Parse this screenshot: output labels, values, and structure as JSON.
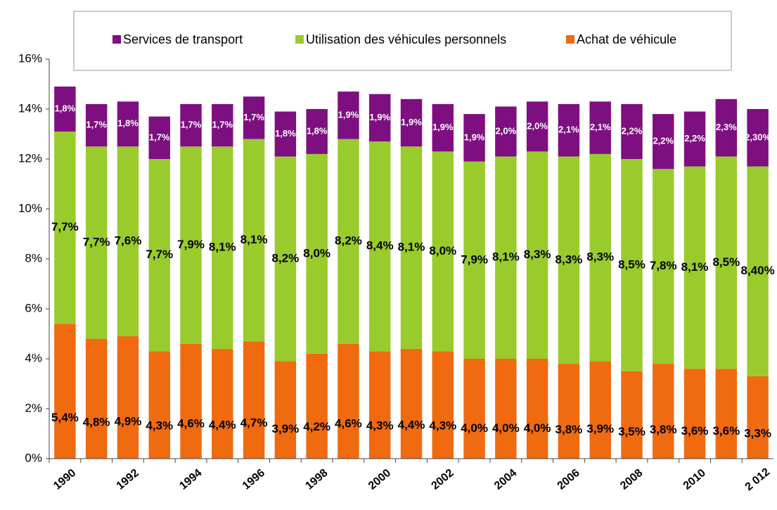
{
  "chart_data": {
    "type": "bar",
    "stacked": true,
    "categories": [
      "1990",
      null,
      "1992",
      null,
      "1994",
      null,
      "1996",
      null,
      "1998",
      null,
      "2000",
      null,
      "2002",
      null,
      "2004",
      null,
      "2006",
      null,
      "2008",
      null,
      "2010",
      null,
      "2 012"
    ],
    "series": [
      {
        "name": "Services de transport",
        "color": "#7e0f80",
        "values": [
          1.8,
          1.7,
          1.8,
          1.7,
          1.7,
          1.7,
          1.7,
          1.8,
          1.8,
          1.9,
          1.9,
          1.9,
          1.9,
          1.9,
          2.0,
          2.0,
          2.1,
          2.1,
          2.2,
          2.2,
          2.2,
          2.3,
          2.3
        ],
        "value_labels": [
          "1,8%",
          "1,7%",
          "1,8%",
          "1,7%",
          "1,7%",
          "1,7%",
          "1,7%",
          "1,8%",
          "1,8%",
          "1,9%",
          "1,9%",
          "1,9%",
          "1,9%",
          "1,9%",
          "2,0%",
          "2,0%",
          "2,1%",
          "2,1%",
          "2,2%",
          "2,2%",
          "2,2%",
          "2,3%",
          "2,30%"
        ]
      },
      {
        "name": "Utilisation des véhicules personnels",
        "color": "#9acb2c",
        "values": [
          7.7,
          7.7,
          7.6,
          7.7,
          7.9,
          8.1,
          8.1,
          8.2,
          8.0,
          8.2,
          8.4,
          8.1,
          8.0,
          7.9,
          8.1,
          8.3,
          8.3,
          8.3,
          8.5,
          7.8,
          8.1,
          8.5,
          8.4
        ],
        "value_labels": [
          "7,7%",
          "7,7%",
          "7,6%",
          "7,7%",
          "7,9%",
          "8,1%",
          "8,1%",
          "8,2%",
          "8,0%",
          "8,2%",
          "8,4%",
          "8,1%",
          "8,0%",
          "7,9%",
          "8,1%",
          "8,3%",
          "8,3%",
          "8,3%",
          "8,5%",
          "7,8%",
          "8,1%",
          "8,5%",
          "8,40%"
        ]
      },
      {
        "name": "Achat de véhicule",
        "color": "#f06a10",
        "values": [
          5.4,
          4.8,
          4.9,
          4.3,
          4.6,
          4.4,
          4.7,
          3.9,
          4.2,
          4.6,
          4.3,
          4.4,
          4.3,
          4.0,
          4.0,
          4.0,
          3.8,
          3.9,
          3.5,
          3.8,
          3.6,
          3.6,
          3.3
        ],
        "value_labels": [
          "5,4%",
          "4,8%",
          "4,9%",
          "4,3%",
          "4,6%",
          "4,4%",
          "4,7%",
          "3,9%",
          "4,2%",
          "4,6%",
          "4,3%",
          "4,4%",
          "4,3%",
          "4,0%",
          "4,0%",
          "4,0%",
          "3,8%",
          "3,9%",
          "3,5%",
          "3,8%",
          "3,6%",
          "3,6%",
          "3,3%"
        ]
      }
    ],
    "ylim": [
      0,
      16
    ],
    "yticks": [
      {
        "value": 0,
        "label": "0%"
      },
      {
        "value": 2,
        "label": "2%"
      },
      {
        "value": 4,
        "label": "4%"
      },
      {
        "value": 6,
        "label": "6%"
      },
      {
        "value": 8,
        "label": "8%"
      },
      {
        "value": 10,
        "label": "10%"
      },
      {
        "value": 12,
        "label": "12%"
      },
      {
        "value": 14,
        "label": "14%"
      },
      {
        "value": 16,
        "label": "16%"
      }
    ],
    "legend": "top"
  }
}
